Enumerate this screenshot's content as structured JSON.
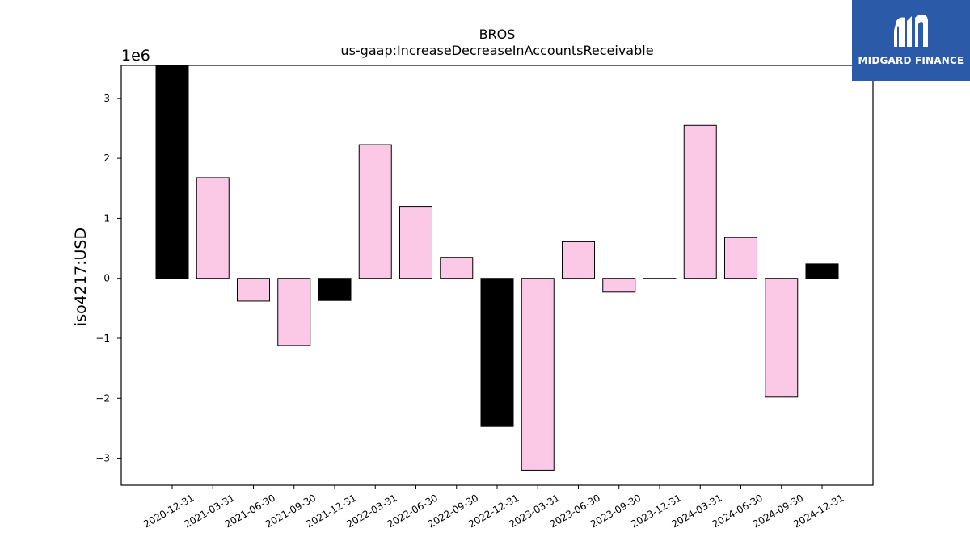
{
  "chart_data": {
    "type": "bar",
    "title": "BROS",
    "subtitle": "us-gaap:IncreaseDecreaseInAccountsReceivable",
    "ylabel": "iso4217:USD",
    "xlabel": "",
    "scale_label": "1e6",
    "ylim": [
      -3.45,
      3.55
    ],
    "yticks": [
      -3,
      -2,
      -1,
      0,
      1,
      2,
      3
    ],
    "ytick_labels": [
      "−3",
      "−2",
      "−1",
      "0",
      "1",
      "2",
      "3"
    ],
    "categories": [
      "2020-12-31",
      "2021-03-31",
      "2021-06-30",
      "2021-09-30",
      "2021-12-31",
      "2022-03-31",
      "2022-06-30",
      "2022-09-30",
      "2022-12-31",
      "2023-03-31",
      "2023-06-30",
      "2023-09-30",
      "2023-12-31",
      "2024-03-31",
      "2024-06-30",
      "2024-09-30",
      "2024-12-31"
    ],
    "values": [
      3.6,
      1.68,
      -0.38,
      -1.12,
      -0.37,
      2.23,
      1.2,
      0.35,
      -2.47,
      -3.2,
      0.61,
      -0.23,
      -0.01,
      2.55,
      0.68,
      -1.98,
      0.24
    ],
    "annual": [
      true,
      false,
      false,
      false,
      true,
      false,
      false,
      false,
      true,
      false,
      false,
      false,
      true,
      false,
      false,
      false,
      true
    ],
    "colors": {
      "annual": "#000000",
      "quarterly": "#fbc8e6",
      "edge": "#000000"
    },
    "grid": false,
    "legend": "none"
  },
  "logo": {
    "text": "MIDGARD FINANCE",
    "background": "#2a5aa8",
    "icon": "midgard-logo-icon"
  }
}
